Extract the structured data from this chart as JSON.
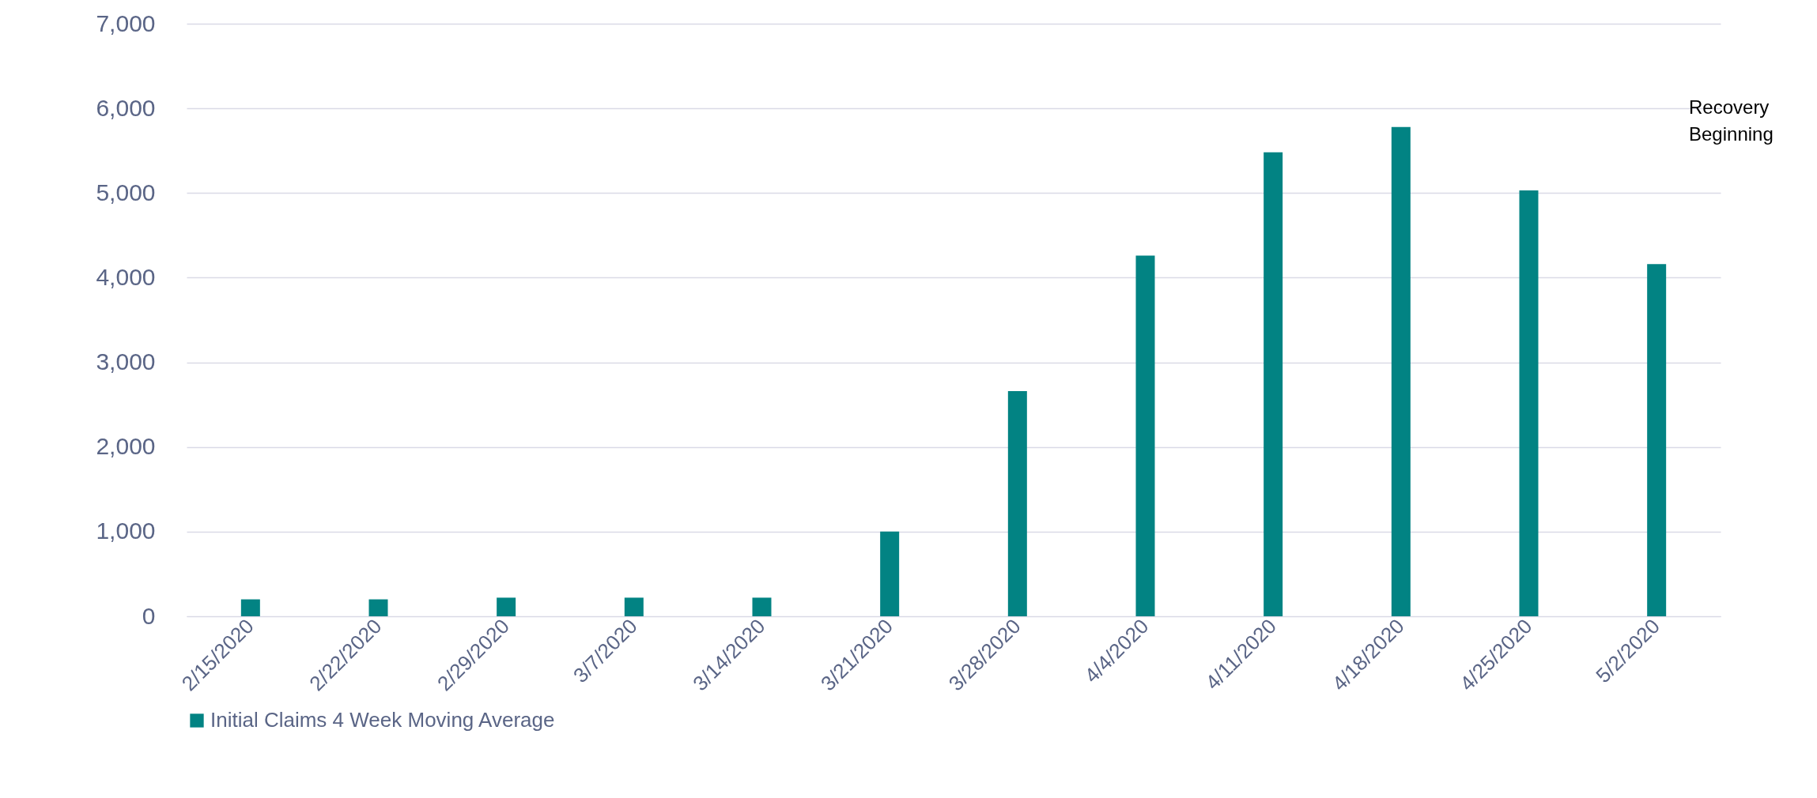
{
  "chart_data": {
    "type": "bar",
    "categories": [
      "2/15/2020",
      "2/22/2020",
      "2/29/2020",
      "3/7/2020",
      "3/14/2020",
      "3/21/2020",
      "3/28/2020",
      "4/4/2020",
      "4/11/2020",
      "4/18/2020",
      "4/25/2020",
      "5/2/2020"
    ],
    "series": [
      {
        "name": "Initial Claims 4 Week Moving Average",
        "color": "#028383",
        "values": [
          200,
          200,
          220,
          220,
          220,
          1000,
          2660,
          4260,
          5480,
          5780,
          5030,
          4160
        ]
      }
    ],
    "ylim": [
      0,
      7000
    ],
    "yticks": [
      {
        "value": 0,
        "label": "0"
      },
      {
        "value": 1000,
        "label": "1,000"
      },
      {
        "value": 2000,
        "label": "2,000"
      },
      {
        "value": 3000,
        "label": "3,000"
      },
      {
        "value": 4000,
        "label": "4,000"
      },
      {
        "value": 5000,
        "label": "5,000"
      },
      {
        "value": 6000,
        "label": "6,000"
      },
      {
        "value": 7000,
        "label": "7,000"
      }
    ],
    "annotations": [
      "Recovery Beginning"
    ],
    "grid": "y",
    "legend": "bottom"
  }
}
